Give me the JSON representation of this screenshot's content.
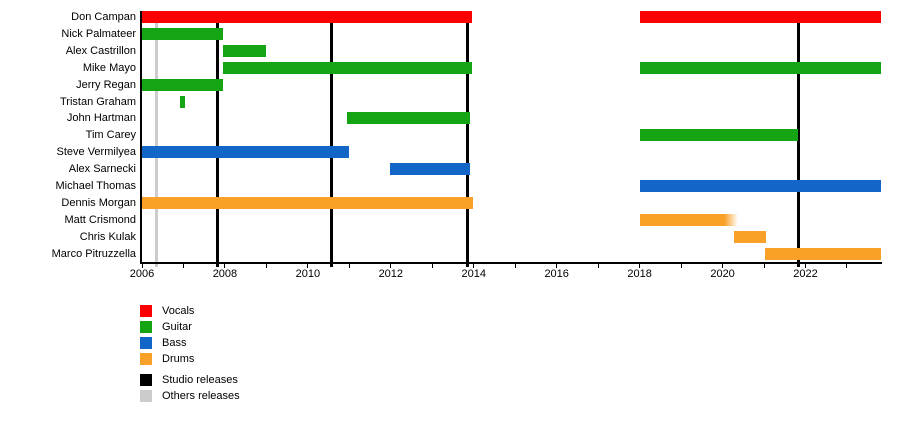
{
  "chart_data": {
    "type": "bar",
    "subtype": "gantt-member-timeline",
    "title": "",
    "x_axis": {
      "min": 2006,
      "max": 2023.82,
      "tick_interval": 1,
      "label_interval": 2,
      "tick_labels": [
        "2006",
        "2008",
        "2010",
        "2012",
        "2014",
        "2016",
        "2018",
        "2020",
        "2022"
      ]
    },
    "grid": "off",
    "rows": [
      {
        "name": "Don Campan",
        "role": "Vocals",
        "segments": [
          [
            2006.0,
            2013.95
          ],
          [
            2018.0,
            2023.82
          ]
        ]
      },
      {
        "name": "Nick Palmateer",
        "role": "Guitar",
        "segments": [
          [
            2006.0,
            2007.95
          ]
        ]
      },
      {
        "name": "Alex Castrillon",
        "role": "Guitar",
        "segments": [
          [
            2007.95,
            2008.99
          ]
        ]
      },
      {
        "name": "Mike Mayo",
        "role": "Guitar",
        "segments": [
          [
            2007.95,
            2013.95
          ],
          [
            2018.0,
            2023.82
          ]
        ]
      },
      {
        "name": "Jerry Regan",
        "role": "Guitar",
        "segments": [
          [
            2006.0,
            2007.95
          ]
        ]
      },
      {
        "name": "Tristan Graham",
        "role": "Guitar",
        "segments": [
          [
            2006.92,
            2007.04
          ]
        ]
      },
      {
        "name": "John Hartman",
        "role": "Guitar",
        "segments": [
          [
            2010.94,
            2013.9
          ]
        ]
      },
      {
        "name": "Tim Carey",
        "role": "Guitar",
        "segments": [
          [
            2018.0,
            2021.82
          ]
        ]
      },
      {
        "name": "Steve Vermilyea",
        "role": "Bass",
        "segments": [
          [
            2006.0,
            2011.0
          ]
        ]
      },
      {
        "name": "Alex Sarnecki",
        "role": "Bass",
        "segments": [
          [
            2011.97,
            2013.92
          ]
        ]
      },
      {
        "name": "Michael Thomas",
        "role": "Bass",
        "segments": [
          [
            2018.0,
            2023.82
          ]
        ]
      },
      {
        "name": "Dennis Morgan",
        "role": "Drums",
        "segments": [
          [
            2006.0,
            2013.97
          ]
        ]
      },
      {
        "name": "Matt Crismond",
        "role": "Drums",
        "segments": [
          [
            2018.0,
            2020.38
          ]
        ],
        "fade_right": true
      },
      {
        "name": "Chris Kulak",
        "role": "Drums",
        "segments": [
          [
            2020.28,
            2021.05
          ]
        ]
      },
      {
        "name": "Marco Pitruzzella",
        "role": "Drums",
        "segments": [
          [
            2021.03,
            2023.82
          ]
        ]
      }
    ],
    "release_lines": {
      "studio": [
        2007.83,
        2010.58,
        2013.84,
        2021.83
      ],
      "others": [
        2006.35
      ]
    },
    "colors": {
      "Vocals": "#fa0000",
      "Guitar": "#14a414",
      "Bass": "#1166c8",
      "Drums": "#f9a029",
      "studio_release": "#000000",
      "others_release": "#cccccc"
    },
    "legend": [
      {
        "label": "Vocals",
        "color": "#fa0000",
        "gap_before": false
      },
      {
        "label": "Guitar",
        "color": "#14a414",
        "gap_before": false
      },
      {
        "label": "Bass",
        "color": "#1166c8",
        "gap_before": false
      },
      {
        "label": "Drums",
        "color": "#f9a029",
        "gap_before": false
      },
      {
        "label": "Studio releases",
        "color": "#000000",
        "gap_before": true
      },
      {
        "label": "Others releases",
        "color": "#cccccc",
        "gap_before": false
      }
    ],
    "legend_position": "bottom-left"
  }
}
